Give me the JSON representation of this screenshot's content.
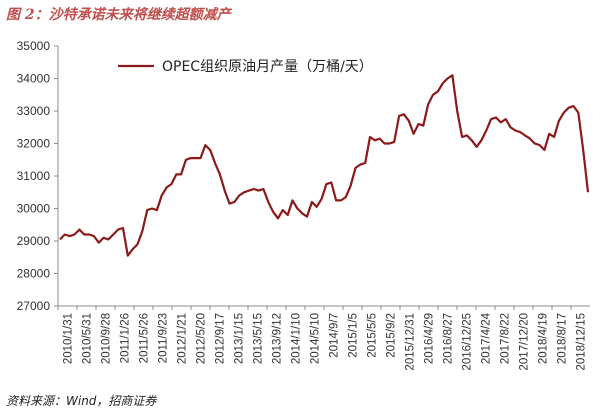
{
  "figure_title": "图 2：沙特承诺未来将继续超额减产",
  "source": "资料来源：Wind，招商证券",
  "colors": {
    "series": "#8b1a1a",
    "title": "#c0504d",
    "axis": "#8c8c8c"
  },
  "chart_data": {
    "type": "line",
    "title": "",
    "xlabel": "",
    "ylabel": "",
    "ylim": [
      27000,
      35000
    ],
    "yticks": [
      27000,
      28000,
      29000,
      30000,
      31000,
      32000,
      33000,
      34000,
      35000
    ],
    "grid": false,
    "legend_position": "top-center",
    "xtick_labels": [
      "2010/1/31",
      "2010/5/31",
      "2010/9/28",
      "2011/1/26",
      "2011/5/26",
      "2011/9/23",
      "2012/1/21",
      "2012/5/20",
      "2012/9/17",
      "2013/1/15",
      "2013/5/15",
      "2013/9/12",
      "2014/1/10",
      "2014/5/10",
      "2014/9/7",
      "2015/1/5",
      "2015/5/5",
      "2015/9/2",
      "2015/12/31",
      "2016/4/29",
      "2016/8/27",
      "2016/12/25",
      "2017/4/24",
      "2017/8/22",
      "2017/12/20",
      "2018/4/19",
      "2018/8/17",
      "2018/12/15"
    ],
    "series": [
      {
        "name": "OPEC组织原油月产量（万桶/天）",
        "values": [
          29050,
          29200,
          29150,
          29200,
          29350,
          29200,
          29200,
          29150,
          28950,
          29100,
          29050,
          29200,
          29350,
          29400,
          28550,
          28750,
          28900,
          29300,
          29950,
          30000,
          29950,
          30400,
          30650,
          30750,
          31050,
          31050,
          31500,
          31550,
          31550,
          31550,
          31950,
          31800,
          31400,
          31050,
          30550,
          30150,
          30200,
          30400,
          30500,
          30550,
          30600,
          30550,
          30600,
          30200,
          29900,
          29700,
          29950,
          29800,
          30250,
          30000,
          29850,
          29750,
          30200,
          30050,
          30300,
          30750,
          30800,
          30250,
          30250,
          30350,
          30700,
          31250,
          31350,
          31400,
          32200,
          32100,
          32150,
          32000,
          32000,
          32050,
          32850,
          32900,
          32700,
          32300,
          32600,
          32550,
          33200,
          33500,
          33600,
          33850,
          34000,
          34100,
          33000,
          32200,
          32250,
          32100,
          31900,
          32100,
          32400,
          32750,
          32800,
          32650,
          32750,
          32500,
          32400,
          32350,
          32250,
          32150,
          32000,
          31950,
          31800,
          32300,
          32200,
          32700,
          32950,
          33100,
          33150,
          32950,
          31800,
          30500
        ]
      }
    ]
  }
}
